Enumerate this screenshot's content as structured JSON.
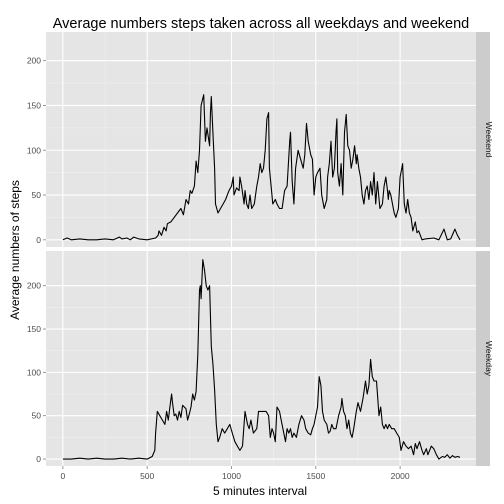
{
  "chart_data": {
    "type": "line",
    "title": "Average numbers steps taken across all weekdays and weekend",
    "xlabel": "5 minutes interval",
    "ylabel": "Average numbers of steps",
    "xlim": [
      -100,
      2450
    ],
    "x_ticks": [
      0,
      500,
      1000,
      1500,
      2000
    ],
    "y_ticks": [
      0,
      50,
      100,
      150,
      200
    ],
    "grid": true,
    "colors": {
      "panel_bg": "#e5e5e5",
      "grid": "#ffffff",
      "strip_bg": "#cccccc",
      "line": "#000000"
    },
    "panels": [
      {
        "strip_label": "Weekend",
        "ylim": [
          -8,
          232
        ],
        "points": [
          [
            0,
            0
          ],
          [
            25,
            2
          ],
          [
            50,
            0
          ],
          [
            100,
            1
          ],
          [
            150,
            0
          ],
          [
            200,
            0
          ],
          [
            250,
            1
          ],
          [
            300,
            0
          ],
          [
            335,
            3
          ],
          [
            350,
            1
          ],
          [
            380,
            2
          ],
          [
            400,
            0
          ],
          [
            420,
            3
          ],
          [
            450,
            1
          ],
          [
            500,
            0
          ],
          [
            550,
            2
          ],
          [
            565,
            5
          ],
          [
            570,
            10
          ],
          [
            585,
            5
          ],
          [
            600,
            14
          ],
          [
            612,
            10
          ],
          [
            620,
            18
          ],
          [
            640,
            20
          ],
          [
            660,
            25
          ],
          [
            680,
            30
          ],
          [
            700,
            35
          ],
          [
            715,
            28
          ],
          [
            730,
            45
          ],
          [
            745,
            40
          ],
          [
            755,
            55
          ],
          [
            765,
            52
          ],
          [
            780,
            60
          ],
          [
            790,
            88
          ],
          [
            800,
            75
          ],
          [
            810,
            100
          ],
          [
            820,
            150
          ],
          [
            835,
            162
          ],
          [
            845,
            110
          ],
          [
            855,
            125
          ],
          [
            870,
            105
          ],
          [
            875,
            140
          ],
          [
            880,
            160
          ],
          [
            890,
            120
          ],
          [
            900,
            80
          ],
          [
            905,
            40
          ],
          [
            920,
            30
          ],
          [
            935,
            35
          ],
          [
            950,
            40
          ],
          [
            965,
            45
          ],
          [
            985,
            55
          ],
          [
            1000,
            60
          ],
          [
            1010,
            70
          ],
          [
            1015,
            50
          ],
          [
            1030,
            58
          ],
          [
            1045,
            55
          ],
          [
            1050,
            70
          ],
          [
            1060,
            60
          ],
          [
            1075,
            40
          ],
          [
            1080,
            55
          ],
          [
            1090,
            40
          ],
          [
            1100,
            35
          ],
          [
            1110,
            50
          ],
          [
            1120,
            35
          ],
          [
            1135,
            40
          ],
          [
            1150,
            60
          ],
          [
            1160,
            70
          ],
          [
            1170,
            85
          ],
          [
            1180,
            75
          ],
          [
            1190,
            80
          ],
          [
            1200,
            100
          ],
          [
            1210,
            135
          ],
          [
            1220,
            142
          ],
          [
            1225,
            80
          ],
          [
            1235,
            60
          ],
          [
            1245,
            40
          ],
          [
            1260,
            45
          ],
          [
            1270,
            40
          ],
          [
            1285,
            35
          ],
          [
            1300,
            35
          ],
          [
            1315,
            55
          ],
          [
            1330,
            60
          ],
          [
            1345,
            110
          ],
          [
            1350,
            120
          ],
          [
            1360,
            65
          ],
          [
            1370,
            40
          ],
          [
            1380,
            80
          ],
          [
            1395,
            100
          ],
          [
            1410,
            90
          ],
          [
            1425,
            80
          ],
          [
            1435,
            95
          ],
          [
            1445,
            130
          ],
          [
            1455,
            110
          ],
          [
            1470,
            95
          ],
          [
            1480,
            90
          ],
          [
            1490,
            50
          ],
          [
            1500,
            70
          ],
          [
            1510,
            75
          ],
          [
            1525,
            80
          ],
          [
            1535,
            50
          ],
          [
            1550,
            35
          ],
          [
            1565,
            45
          ],
          [
            1570,
            70
          ],
          [
            1580,
            85
          ],
          [
            1590,
            110
          ],
          [
            1600,
            70
          ],
          [
            1610,
            80
          ],
          [
            1620,
            120
          ],
          [
            1625,
            135
          ],
          [
            1630,
            75
          ],
          [
            1640,
            60
          ],
          [
            1650,
            85
          ],
          [
            1660,
            50
          ],
          [
            1670,
            120
          ],
          [
            1680,
            140
          ],
          [
            1690,
            105
          ],
          [
            1700,
            100
          ],
          [
            1710,
            80
          ],
          [
            1720,
            90
          ],
          [
            1730,
            105
          ],
          [
            1740,
            85
          ],
          [
            1745,
            95
          ],
          [
            1755,
            80
          ],
          [
            1765,
            70
          ],
          [
            1775,
            50
          ],
          [
            1785,
            40
          ],
          [
            1795,
            55
          ],
          [
            1805,
            60
          ],
          [
            1815,
            45
          ],
          [
            1825,
            65
          ],
          [
            1835,
            50
          ],
          [
            1845,
            75
          ],
          [
            1855,
            40
          ],
          [
            1865,
            65
          ],
          [
            1880,
            35
          ],
          [
            1895,
            40
          ],
          [
            1905,
            60
          ],
          [
            1915,
            70
          ],
          [
            1925,
            55
          ],
          [
            1930,
            45
          ],
          [
            1935,
            55
          ],
          [
            1945,
            50
          ],
          [
            1955,
            40
          ],
          [
            1965,
            30
          ],
          [
            1975,
            25
          ],
          [
            1990,
            35
          ],
          [
            2000,
            70
          ],
          [
            2010,
            80
          ],
          [
            2015,
            85
          ],
          [
            2025,
            40
          ],
          [
            2035,
            30
          ],
          [
            2045,
            45
          ],
          [
            2055,
            30
          ],
          [
            2065,
            25
          ],
          [
            2075,
            10
          ],
          [
            2090,
            20
          ],
          [
            2100,
            8
          ],
          [
            2110,
            10
          ],
          [
            2130,
            0
          ],
          [
            2150,
            1
          ],
          [
            2200,
            2
          ],
          [
            2230,
            0
          ],
          [
            2260,
            12
          ],
          [
            2280,
            0
          ],
          [
            2300,
            1
          ],
          [
            2325,
            12
          ],
          [
            2340,
            5
          ],
          [
            2355,
            0
          ]
        ]
      },
      {
        "strip_label": "Weekday",
        "ylim": [
          -8,
          240
        ],
        "points": [
          [
            0,
            0
          ],
          [
            50,
            0
          ],
          [
            100,
            1
          ],
          [
            150,
            0
          ],
          [
            200,
            1
          ],
          [
            250,
            0
          ],
          [
            300,
            0
          ],
          [
            350,
            1
          ],
          [
            400,
            0
          ],
          [
            450,
            1
          ],
          [
            500,
            0
          ],
          [
            530,
            3
          ],
          [
            545,
            10
          ],
          [
            550,
            30
          ],
          [
            560,
            55
          ],
          [
            575,
            50
          ],
          [
            590,
            45
          ],
          [
            605,
            40
          ],
          [
            615,
            55
          ],
          [
            625,
            45
          ],
          [
            635,
            60
          ],
          [
            645,
            75
          ],
          [
            650,
            65
          ],
          [
            660,
            50
          ],
          [
            670,
            52
          ],
          [
            680,
            45
          ],
          [
            690,
            55
          ],
          [
            700,
            48
          ],
          [
            710,
            62
          ],
          [
            720,
            60
          ],
          [
            730,
            58
          ],
          [
            740,
            45
          ],
          [
            750,
            52
          ],
          [
            760,
            60
          ],
          [
            770,
            75
          ],
          [
            780,
            68
          ],
          [
            790,
            78
          ],
          [
            800,
            120
          ],
          [
            810,
            195
          ],
          [
            815,
            200
          ],
          [
            820,
            185
          ],
          [
            830,
            230
          ],
          [
            840,
            218
          ],
          [
            850,
            200
          ],
          [
            860,
            195
          ],
          [
            870,
            200
          ],
          [
            880,
            130
          ],
          [
            890,
            110
          ],
          [
            900,
            80
          ],
          [
            910,
            40
          ],
          [
            920,
            20
          ],
          [
            930,
            25
          ],
          [
            945,
            35
          ],
          [
            960,
            30
          ],
          [
            975,
            35
          ],
          [
            990,
            40
          ],
          [
            1005,
            30
          ],
          [
            1020,
            20
          ],
          [
            1035,
            15
          ],
          [
            1050,
            10
          ],
          [
            1065,
            15
          ],
          [
            1080,
            55
          ],
          [
            1095,
            40
          ],
          [
            1105,
            35
          ],
          [
            1115,
            45
          ],
          [
            1130,
            30
          ],
          [
            1150,
            35
          ],
          [
            1160,
            55
          ],
          [
            1175,
            55
          ],
          [
            1190,
            55
          ],
          [
            1205,
            55
          ],
          [
            1220,
            50
          ],
          [
            1230,
            25
          ],
          [
            1240,
            35
          ],
          [
            1250,
            30
          ],
          [
            1260,
            20
          ],
          [
            1270,
            60
          ],
          [
            1285,
            55
          ],
          [
            1295,
            45
          ],
          [
            1310,
            30
          ],
          [
            1320,
            20
          ],
          [
            1330,
            35
          ],
          [
            1340,
            30
          ],
          [
            1350,
            35
          ],
          [
            1360,
            25
          ],
          [
            1370,
            30
          ],
          [
            1385,
            25
          ],
          [
            1400,
            40
          ],
          [
            1415,
            50
          ],
          [
            1430,
            45
          ],
          [
            1440,
            35
          ],
          [
            1455,
            30
          ],
          [
            1470,
            28
          ],
          [
            1480,
            35
          ],
          [
            1490,
            40
          ],
          [
            1500,
            50
          ],
          [
            1510,
            60
          ],
          [
            1520,
            95
          ],
          [
            1530,
            85
          ],
          [
            1540,
            55
          ],
          [
            1550,
            45
          ],
          [
            1565,
            40
          ],
          [
            1575,
            30
          ],
          [
            1585,
            32
          ],
          [
            1595,
            40
          ],
          [
            1605,
            35
          ],
          [
            1620,
            35
          ],
          [
            1635,
            50
          ],
          [
            1650,
            60
          ],
          [
            1655,
            70
          ],
          [
            1665,
            55
          ],
          [
            1675,
            50
          ],
          [
            1685,
            35
          ],
          [
            1695,
            45
          ],
          [
            1705,
            30
          ],
          [
            1715,
            25
          ],
          [
            1725,
            35
          ],
          [
            1740,
            55
          ],
          [
            1750,
            65
          ],
          [
            1765,
            55
          ],
          [
            1780,
            70
          ],
          [
            1795,
            90
          ],
          [
            1805,
            75
          ],
          [
            1815,
            85
          ],
          [
            1825,
            115
          ],
          [
            1835,
            95
          ],
          [
            1845,
            90
          ],
          [
            1860,
            90
          ],
          [
            1875,
            50
          ],
          [
            1885,
            60
          ],
          [
            1895,
            40
          ],
          [
            1905,
            35
          ],
          [
            1915,
            40
          ],
          [
            1925,
            35
          ],
          [
            1935,
            40
          ],
          [
            1950,
            35
          ],
          [
            1965,
            35
          ],
          [
            1980,
            30
          ],
          [
            1995,
            25
          ],
          [
            2005,
            10
          ],
          [
            2020,
            20
          ],
          [
            2035,
            15
          ],
          [
            2050,
            12
          ],
          [
            2065,
            15
          ],
          [
            2080,
            5
          ],
          [
            2090,
            18
          ],
          [
            2100,
            12
          ],
          [
            2115,
            20
          ],
          [
            2130,
            10
          ],
          [
            2140,
            5
          ],
          [
            2155,
            12
          ],
          [
            2165,
            5
          ],
          [
            2175,
            10
          ],
          [
            2185,
            15
          ],
          [
            2200,
            12
          ],
          [
            2215,
            5
          ],
          [
            2230,
            0
          ],
          [
            2250,
            3
          ],
          [
            2265,
            2
          ],
          [
            2280,
            5
          ],
          [
            2295,
            1
          ],
          [
            2310,
            4
          ],
          [
            2325,
            2
          ],
          [
            2340,
            3
          ],
          [
            2355,
            2
          ]
        ]
      }
    ]
  }
}
